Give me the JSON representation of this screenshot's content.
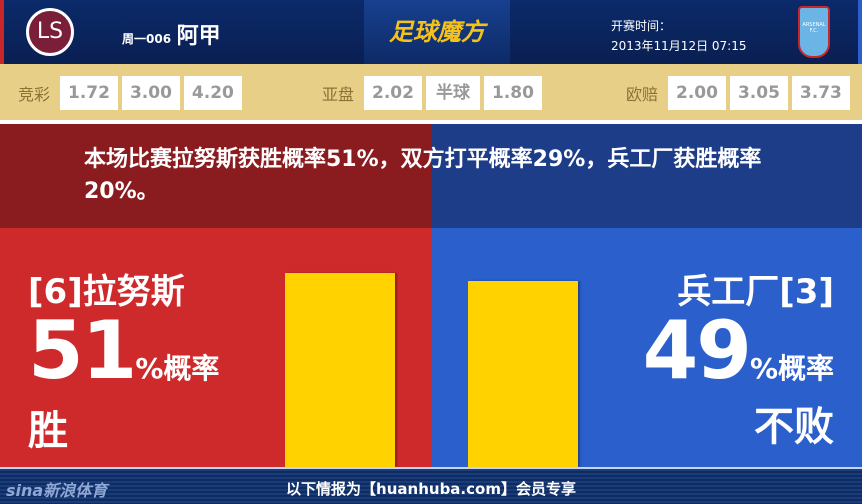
{
  "header": {
    "home_logo_text": "LS",
    "match_code": "周一006",
    "league": "阿甲",
    "brand": "足球魔方",
    "kickoff_label": "开赛时间：",
    "kickoff_time": "2013年11月12日 07:15",
    "away_logo_text": "ARSENAL F.C."
  },
  "odds": {
    "jingcai": {
      "label": "竞彩",
      "values": [
        "1.72",
        "3.00",
        "4.20"
      ]
    },
    "asian": {
      "label": "亚盘",
      "values": [
        "2.02",
        "半球",
        "1.80"
      ]
    },
    "euro": {
      "label": "欧赔",
      "values": [
        "2.00",
        "3.05",
        "3.73"
      ]
    }
  },
  "summary": "本场比赛拉努斯获胜概率51%，双方打平概率29%，兵工厂获胜概率20%。",
  "home": {
    "team": "[6]拉努斯",
    "percent": "51",
    "suffix": "%概率",
    "result": "胜",
    "color": "#cf2a2b"
  },
  "away": {
    "team": "兵工厂[3]",
    "percent": "49",
    "suffix": "%概率",
    "result": "不败",
    "color": "#2b5fcc"
  },
  "chart_data": {
    "type": "bar",
    "categories": [
      "拉努斯 胜",
      "兵工厂 不败"
    ],
    "values": [
      51,
      49
    ],
    "bar_color": "#ffd200"
  },
  "footer": {
    "sina": "sina新浪体育",
    "text": "以下情报为【huanhuba.com】会员专享"
  }
}
